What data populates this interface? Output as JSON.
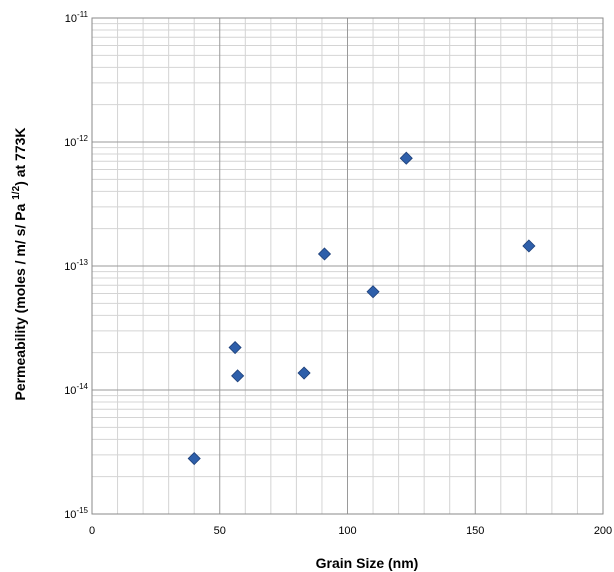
{
  "chart_data": {
    "type": "scatter",
    "xlabel": "Grain Size  (nm)",
    "ylabel": "Permeability  (moles / m/ s/ Pa ",
    "ylabel_sup": "1/2",
    "ylabel_end": ") at 773K",
    "xlim": [
      0,
      200
    ],
    "ylim": [
      1e-15,
      1e-11
    ],
    "yscale": "log",
    "grid": true,
    "x_ticks": [
      "0",
      "50",
      "100",
      "150",
      "200"
    ],
    "y_ticks": [
      {
        "base": "10",
        "exp": "-11",
        "value": 1e-11
      },
      {
        "base": "10",
        "exp": "-12",
        "value": 1e-12
      },
      {
        "base": "10",
        "exp": "-13",
        "value": 1e-13
      },
      {
        "base": "10",
        "exp": "-14",
        "value": 1e-14
      },
      {
        "base": "10",
        "exp": "-15",
        "value": 1e-15
      }
    ],
    "marker_color": "#2e5faa",
    "points": [
      {
        "x": 40,
        "y": 2.8e-15
      },
      {
        "x": 56,
        "y": 2.2e-14
      },
      {
        "x": 57,
        "y": 1.3e-14
      },
      {
        "x": 83,
        "y": 1.37e-14
      },
      {
        "x": 91,
        "y": 1.25e-13
      },
      {
        "x": 110,
        "y": 6.2e-14
      },
      {
        "x": 123,
        "y": 7.4e-13
      },
      {
        "x": 171,
        "y": 1.45e-13
      }
    ]
  }
}
